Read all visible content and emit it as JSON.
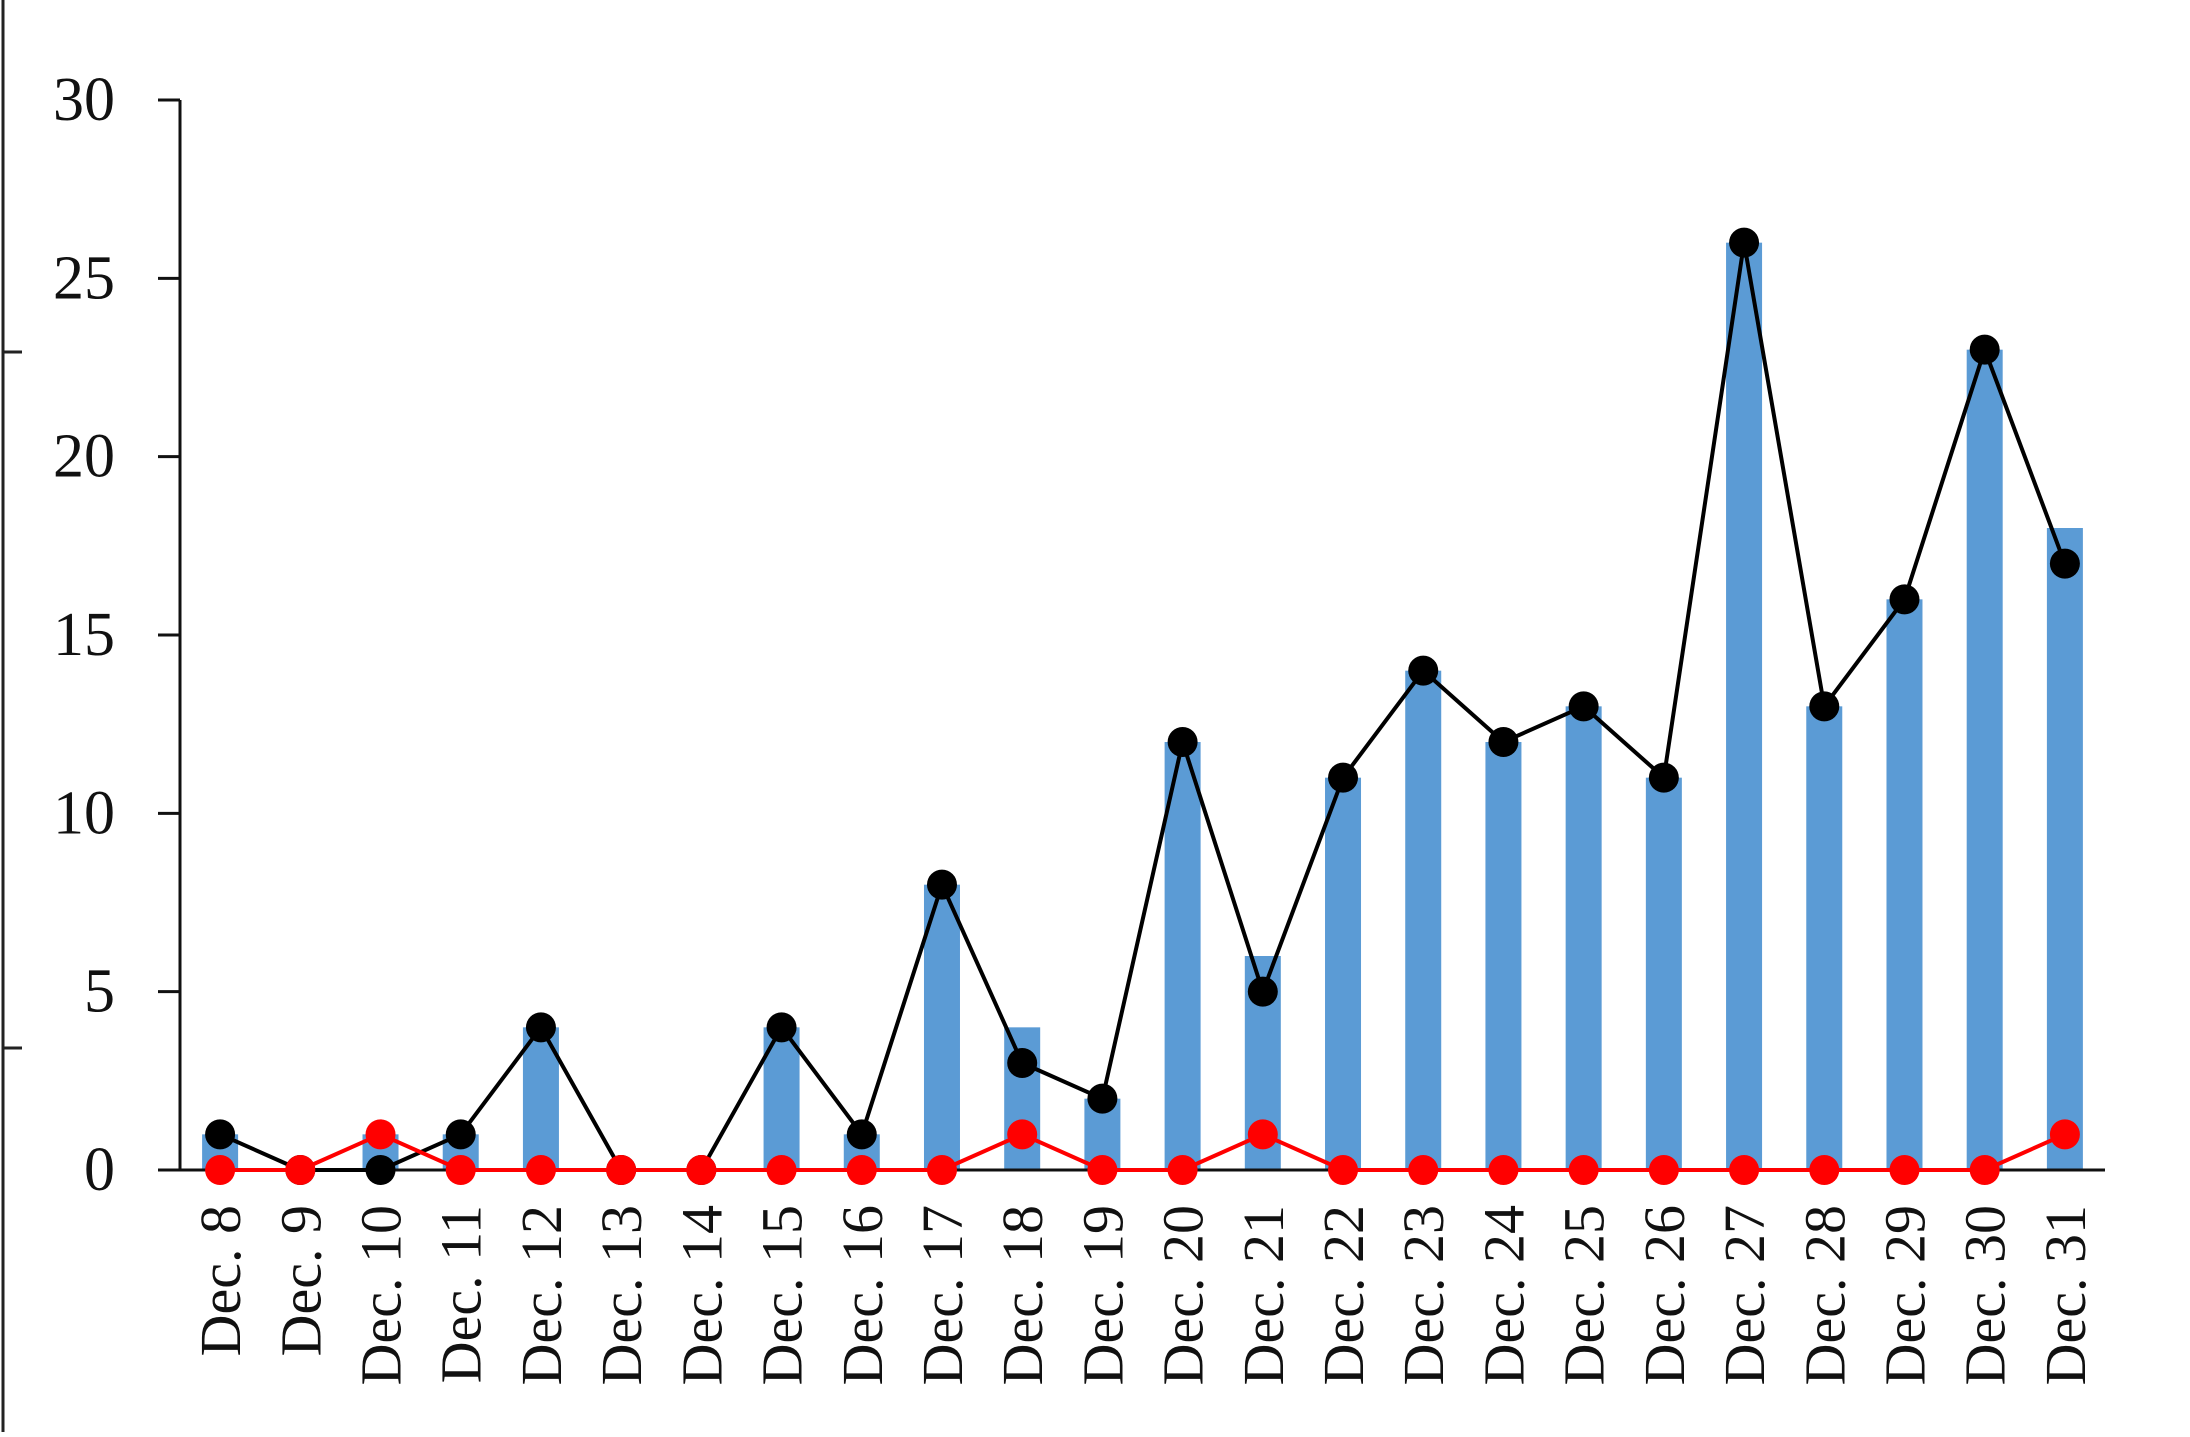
{
  "chart_data": {
    "type": "bar",
    "categories": [
      "Dec. 8",
      "Dec. 9",
      "Dec. 10",
      "Dec. 11",
      "Dec. 12",
      "Dec. 13",
      "Dec. 14",
      "Dec. 15",
      "Dec. 16",
      "Dec. 17",
      "Dec. 18",
      "Dec. 19",
      "Dec. 20",
      "Dec. 21",
      "Dec. 22",
      "Dec. 23",
      "Dec. 24",
      "Dec. 25",
      "Dec. 26",
      "Dec. 27",
      "Dec. 28",
      "Dec. 29",
      "Dec. 30",
      "Dec. 31"
    ],
    "series": [
      {
        "kind": "bar",
        "color": "#5b9bd5",
        "values": [
          1,
          0,
          1,
          1,
          4,
          0,
          0,
          4,
          1,
          8,
          4,
          2,
          12,
          6,
          11,
          14,
          12,
          13,
          11,
          26,
          13,
          16,
          23,
          18
        ]
      },
      {
        "kind": "line",
        "color": "#000000",
        "values": [
          1,
          0,
          0,
          1,
          4,
          0,
          0,
          4,
          1,
          8,
          3,
          2,
          12,
          5,
          11,
          14,
          12,
          13,
          11,
          26,
          13,
          16,
          23,
          17
        ]
      },
      {
        "kind": "line",
        "color": "#ff0000",
        "values": [
          0,
          0,
          1,
          0,
          0,
          0,
          0,
          0,
          0,
          0,
          1,
          0,
          0,
          1,
          0,
          0,
          0,
          0,
          0,
          0,
          0,
          0,
          0,
          1
        ]
      }
    ],
    "yticks": [
      "0",
      "5",
      "10",
      "15",
      "20",
      "25",
      "30"
    ],
    "ylim": [
      0,
      30
    ],
    "title": "",
    "xlabel": "",
    "ylabel": "",
    "grid": false,
    "legend": "none"
  }
}
